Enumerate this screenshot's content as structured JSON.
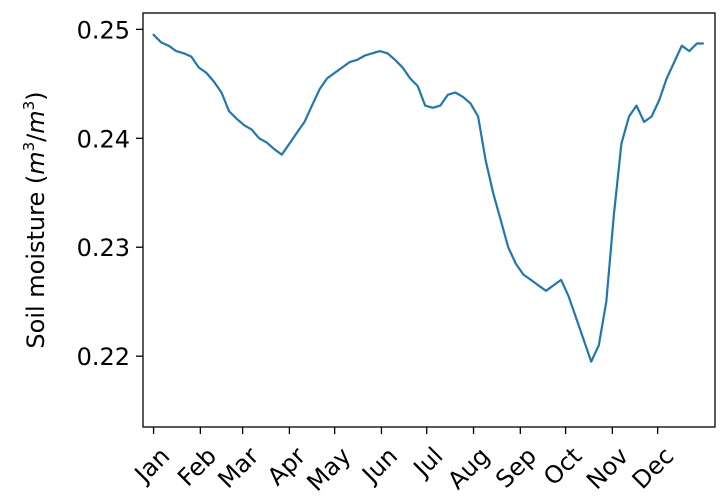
{
  "chart_data": {
    "type": "line",
    "title": "",
    "xlabel": "",
    "ylabel_text": "Soil moisture (",
    "ylabel_unit_base": "m",
    "ylabel_unit_exp": "3",
    "ylabel_unit_sep": "/",
    "ylabel_unit_base2": "m",
    "ylabel_unit_exp2": "3",
    "ylabel_close": ")",
    "ylim": [
      0.2135,
      0.2515
    ],
    "xlim": [
      -7,
      372
    ],
    "yticks": [
      0.22,
      0.23,
      0.24,
      0.25
    ],
    "ytick_labels": [
      "0.22",
      "0.23",
      "0.24",
      "0.25"
    ],
    "xticks": [
      0,
      31,
      59,
      90,
      120,
      151,
      181,
      212,
      243,
      273,
      304,
      334
    ],
    "xtick_labels": [
      "Jan",
      "Feb",
      "Mar",
      "Apr",
      "May",
      "Jun",
      "Jul",
      "Aug",
      "Sep",
      "Oct",
      "Nov",
      "Dec"
    ],
    "grid": false,
    "color": "#1f77b4",
    "series": [
      {
        "x": [
          0,
          5,
          10,
          15,
          20,
          25,
          30,
          35,
          40,
          45,
          50,
          55,
          60,
          65,
          70,
          75,
          80,
          85,
          90,
          95,
          100,
          105,
          110,
          115,
          120,
          125,
          130,
          135,
          140,
          145,
          150,
          155,
          160,
          165,
          170,
          175,
          180,
          185,
          190,
          195,
          200,
          205,
          210,
          215,
          220,
          225,
          230,
          235,
          240,
          245,
          250,
          255,
          260,
          265,
          270,
          275,
          280,
          285,
          290,
          295,
          300,
          305,
          310,
          315,
          320,
          325,
          330,
          335,
          340,
          345,
          350,
          355,
          360,
          364
        ],
        "y": [
          0.2495,
          0.2488,
          0.2485,
          0.248,
          0.2478,
          0.2475,
          0.2465,
          0.246,
          0.2452,
          0.2442,
          0.2425,
          0.2418,
          0.2412,
          0.2408,
          0.24,
          0.2396,
          0.239,
          0.2385,
          0.2395,
          0.2405,
          0.2415,
          0.243,
          0.2445,
          0.2455,
          0.246,
          0.2465,
          0.247,
          0.2472,
          0.2476,
          0.2478,
          0.248,
          0.2478,
          0.2472,
          0.2465,
          0.2455,
          0.2448,
          0.243,
          0.2428,
          0.243,
          0.244,
          0.2442,
          0.2438,
          0.2432,
          0.242,
          0.238,
          0.235,
          0.2325,
          0.23,
          0.2285,
          0.2275,
          0.227,
          0.2265,
          0.226,
          0.2265,
          0.227,
          0.2255,
          0.2235,
          0.2215,
          0.2195,
          0.221,
          0.225,
          0.233,
          0.2395,
          0.242,
          0.243,
          0.2415,
          0.242,
          0.2435,
          0.2455,
          0.247,
          0.2485,
          0.248,
          0.2487,
          0.2487
        ]
      }
    ]
  }
}
